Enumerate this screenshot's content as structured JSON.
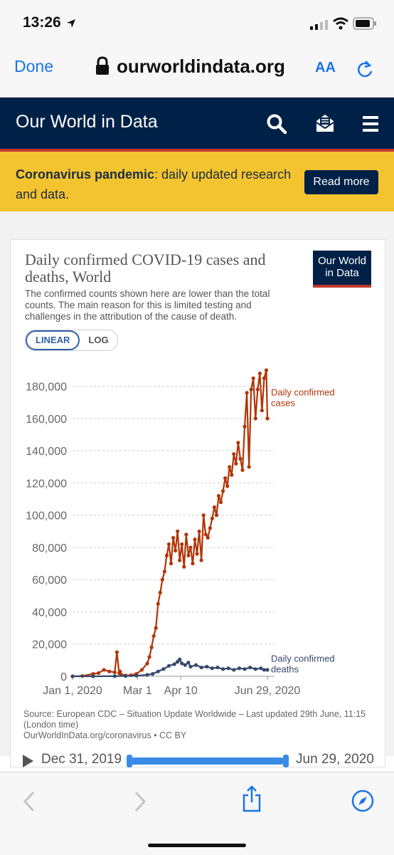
{
  "status_bar": {
    "time": "13:26"
  },
  "browser": {
    "done_label": "Done",
    "url": "ourworldindata.org",
    "text_size_label": "AA"
  },
  "site": {
    "brand": "Our World in Data",
    "banner": {
      "bold": "Coronavirus pandemic",
      "text": ": daily updated research and data.",
      "button": "Read more"
    }
  },
  "chart_card": {
    "title": "Daily confirmed COVID-19 cases and deaths, World",
    "subtitle": "The confirmed counts shown here are lower than the total counts. The main reason for this is limited testing and challenges in the attribution of the cause of death.",
    "logo": "Our World in Data",
    "scale_options": [
      "LINEAR",
      "LOG"
    ],
    "active_scale": "LINEAR",
    "source_line1": "Source: European CDC – Situation Update Worldwide – Last updated 29th June, 11:15 (London time)",
    "source_line2": "OurWorldInData.org/coronavirus • CC BY",
    "timeline": {
      "start": "Dec 31, 2019",
      "end": "Jun 29, 2020"
    }
  },
  "colors": {
    "cases": "#b13507",
    "deaths": "#33486e",
    "header": "#002147",
    "banner": "#f4c430"
  },
  "chart_data": {
    "type": "line",
    "title": "Daily confirmed COVID-19 cases and deaths, World",
    "x_tick_labels": [
      "Jan 1, 2020",
      "Mar 1",
      "Apr 10",
      "Jun 29, 2020"
    ],
    "x_tick_days": [
      1,
      61,
      101,
      181
    ],
    "y_ticks": [
      0,
      20000,
      40000,
      60000,
      80000,
      100000,
      120000,
      140000,
      160000,
      180000
    ],
    "y_tick_labels": [
      "0",
      "20,000",
      "40,000",
      "60,000",
      "80,000",
      "100,000",
      "120,000",
      "140,000",
      "160,000",
      "180,000"
    ],
    "ylim": [
      0,
      190000
    ],
    "grid": true,
    "series": [
      {
        "name": "Daily confirmed cases",
        "label_lines": [
          "Daily confirmed",
          "cases"
        ],
        "color": "#b13507",
        "x_days": [
          1,
          10,
          20,
          25,
          30,
          35,
          40,
          42,
          44,
          45,
          46,
          50,
          55,
          60,
          65,
          70,
          72,
          74,
          76,
          78,
          80,
          82,
          84,
          86,
          88,
          90,
          92,
          94,
          96,
          98,
          100,
          102,
          104,
          106,
          108,
          110,
          112,
          114,
          116,
          118,
          120,
          122,
          124,
          126,
          128,
          130,
          132,
          134,
          136,
          138,
          140,
          142,
          144,
          146,
          148,
          150,
          152,
          154,
          156,
          158,
          160,
          162,
          164,
          166,
          168,
          170,
          172,
          174,
          176,
          178,
          180,
          181
        ],
        "values": [
          0,
          200,
          1500,
          2000,
          4000,
          3000,
          2500,
          15000,
          2000,
          3000,
          1000,
          500,
          700,
          1500,
          4000,
          8000,
          12000,
          18000,
          25000,
          30000,
          45000,
          52000,
          60000,
          65000,
          75000,
          82000,
          70000,
          86000,
          78000,
          90000,
          72000,
          82000,
          68000,
          88000,
          75000,
          80000,
          70000,
          85000,
          76000,
          90000,
          72000,
          100000,
          88000,
          86000,
          92000,
          98000,
          105000,
          100000,
          112000,
          108000,
          115000,
          123000,
          118000,
          130000,
          125000,
          138000,
          132000,
          145000,
          135000,
          128000,
          155000,
          176000,
          130000,
          178000,
          185000,
          160000,
          178000,
          188000,
          165000,
          185000,
          190000,
          160000
        ]
      },
      {
        "name": "Daily confirmed deaths",
        "label_lines": [
          "Daily confirmed",
          "deaths"
        ],
        "color": "#33486e",
        "x_days": [
          1,
          20,
          40,
          50,
          60,
          70,
          75,
          80,
          85,
          90,
          95,
          98,
          100,
          102,
          105,
          108,
          110,
          115,
          120,
          125,
          130,
          135,
          140,
          145,
          150,
          155,
          160,
          165,
          170,
          175,
          178,
          181
        ],
        "values": [
          0,
          0,
          100,
          200,
          400,
          900,
          1500,
          3000,
          4500,
          6500,
          7500,
          9000,
          10500,
          8000,
          7000,
          8500,
          6000,
          7000,
          5500,
          6000,
          5000,
          5500,
          4500,
          5000,
          4000,
          5000,
          4500,
          5500,
          4500,
          5000,
          4000,
          4000
        ]
      }
    ]
  }
}
